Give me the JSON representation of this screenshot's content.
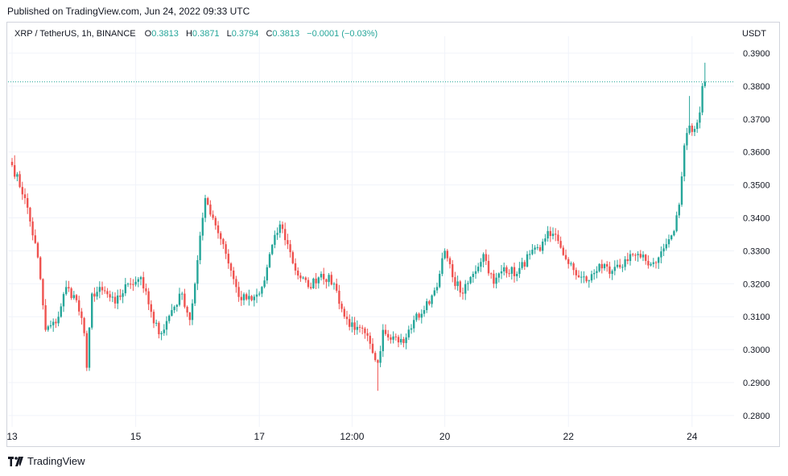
{
  "header": {
    "published": "Published on TradingView.com, Jun 24, 2022 09:33 UTC"
  },
  "legend": {
    "symbol": "XRP / TetherUS, 1h, BINANCE",
    "o_label": "O",
    "o_value": "0.3813",
    "h_label": "H",
    "h_value": "0.3871",
    "l_label": "L",
    "l_value": "0.3794",
    "c_label": "C",
    "c_value": "0.3813",
    "change": "−0.0001 (−0.03%)"
  },
  "footer": {
    "brand": "TradingView",
    "logo_icon": "tradingview-logo-icon"
  },
  "colors": {
    "up": "#26a69a",
    "down": "#ef5350",
    "grid": "#f0f3fa",
    "axis_text": "#131722",
    "price_line": "#26a69a"
  },
  "chart_data": {
    "type": "candlestick",
    "symbol": "XRP / TetherUS",
    "interval": "1h",
    "exchange": "BINANCE",
    "y_axis_label": "USDT",
    "ylim": [
      0.2765,
      0.3935
    ],
    "y_ticks": [
      "0.3900",
      "0.3800",
      "0.3700",
      "0.3600",
      "0.3500",
      "0.3400",
      "0.3300",
      "0.3200",
      "0.3100",
      "0.3000",
      "0.2900",
      "0.2800"
    ],
    "x_ticks": [
      {
        "label": "13",
        "bar": 0
      },
      {
        "label": "15",
        "bar": 48
      },
      {
        "label": "17",
        "bar": 96
      },
      {
        "label": "12:00",
        "bar": 132
      },
      {
        "label": "20",
        "bar": 168
      },
      {
        "label": "22",
        "bar": 216
      },
      {
        "label": "24",
        "bar": 264
      }
    ],
    "last_price": 0.3813,
    "grid": true,
    "key_points": [
      [
        0,
        0.356
      ],
      [
        5,
        0.346
      ],
      [
        10,
        0.328
      ],
      [
        13,
        0.306
      ],
      [
        17,
        0.308
      ],
      [
        21,
        0.319
      ],
      [
        25,
        0.315
      ],
      [
        28,
        0.305
      ],
      [
        29,
        0.2945
      ],
      [
        31,
        0.317
      ],
      [
        35,
        0.318
      ],
      [
        40,
        0.314
      ],
      [
        45,
        0.32
      ],
      [
        50,
        0.322
      ],
      [
        55,
        0.308
      ],
      [
        58,
        0.305
      ],
      [
        62,
        0.312
      ],
      [
        66,
        0.317
      ],
      [
        69,
        0.309
      ],
      [
        71,
        0.32
      ],
      [
        74,
        0.34
      ],
      [
        75,
        0.346
      ],
      [
        78,
        0.34
      ],
      [
        82,
        0.332
      ],
      [
        85,
        0.324
      ],
      [
        88,
        0.316
      ],
      [
        93,
        0.315
      ],
      [
        96,
        0.317
      ],
      [
        98,
        0.321
      ],
      [
        100,
        0.329
      ],
      [
        104,
        0.338
      ],
      [
        107,
        0.332
      ],
      [
        110,
        0.324
      ],
      [
        115,
        0.319
      ],
      [
        120,
        0.323
      ],
      [
        125,
        0.32
      ],
      [
        129,
        0.31
      ],
      [
        133,
        0.306
      ],
      [
        137,
        0.305
      ],
      [
        140,
        0.299
      ],
      [
        142,
        0.296
      ],
      [
        144,
        0.306
      ],
      [
        148,
        0.304
      ],
      [
        152,
        0.302
      ],
      [
        156,
        0.309
      ],
      [
        160,
        0.312
      ],
      [
        164,
        0.318
      ],
      [
        166,
        0.323
      ],
      [
        168,
        0.33
      ],
      [
        171,
        0.322
      ],
      [
        175,
        0.317
      ],
      [
        179,
        0.323
      ],
      [
        183,
        0.329
      ],
      [
        187,
        0.32
      ],
      [
        191,
        0.325
      ],
      [
        196,
        0.323
      ],
      [
        201,
        0.329
      ],
      [
        205,
        0.33
      ],
      [
        208,
        0.336
      ],
      [
        212,
        0.333
      ],
      [
        216,
        0.326
      ],
      [
        220,
        0.322
      ],
      [
        224,
        0.321
      ],
      [
        228,
        0.326
      ],
      [
        232,
        0.323
      ],
      [
        236,
        0.325
      ],
      [
        240,
        0.329
      ],
      [
        244,
        0.328
      ],
      [
        248,
        0.326
      ],
      [
        251,
        0.328
      ],
      [
        254,
        0.332
      ],
      [
        257,
        0.336
      ],
      [
        259,
        0.344
      ],
      [
        261,
        0.362
      ],
      [
        263,
        0.368
      ],
      [
        265,
        0.367
      ],
      [
        267,
        0.372
      ],
      [
        268,
        0.38
      ],
      [
        269,
        0.3813
      ]
    ],
    "extremes": [
      {
        "bar": 1,
        "high": 0.359
      },
      {
        "bar": 29,
        "low": 0.2935
      },
      {
        "bar": 75,
        "high": 0.347
      },
      {
        "bar": 142,
        "low": 0.2875
      },
      {
        "bar": 208,
        "high": 0.3375
      },
      {
        "bar": 263,
        "high": 0.377
      },
      {
        "bar": 269,
        "high": 0.3871,
        "low": 0.3794
      }
    ]
  }
}
